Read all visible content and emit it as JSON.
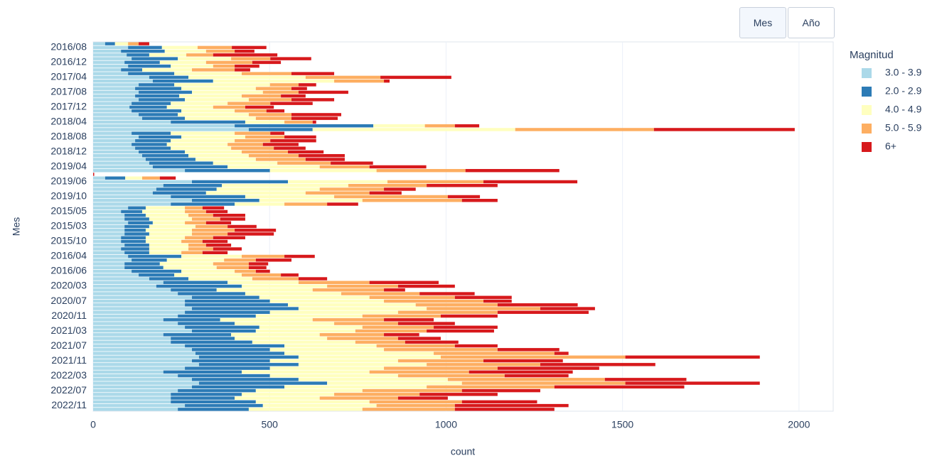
{
  "menu": {
    "buttons": [
      "Mes",
      "Año"
    ],
    "active": 0
  },
  "chart_data": {
    "type": "stacked-barh",
    "x_label": "count",
    "y_label": "Mes",
    "legend_title": "Magnitud",
    "legend_position": "right",
    "grid": true,
    "xlim": [
      0,
      2097
    ],
    "xticks": [
      0,
      500,
      1000,
      1500,
      2000
    ],
    "categories": [
      null,
      "2016/08",
      null,
      null,
      null,
      "2016/12",
      null,
      null,
      null,
      "2017/04",
      null,
      null,
      null,
      "2017/08",
      null,
      null,
      null,
      "2017/12",
      null,
      null,
      null,
      "2018/04",
      null,
      null,
      null,
      "2018/08",
      null,
      null,
      null,
      "2018/12",
      null,
      null,
      null,
      "2019/04",
      null,
      null,
      null,
      "2019/06",
      null,
      null,
      null,
      "2019/10",
      null,
      null,
      null,
      "2015/05",
      null,
      null,
      null,
      "2015/03",
      null,
      null,
      null,
      "2015/10",
      null,
      null,
      null,
      "2016/04",
      null,
      null,
      null,
      "2016/06",
      null,
      null,
      null,
      "2020/03",
      null,
      null,
      null,
      "2020/07",
      null,
      null,
      null,
      "2020/11",
      null,
      null,
      null,
      "2021/03",
      null,
      null,
      null,
      "2021/07",
      null,
      null,
      null,
      "2021/11",
      null,
      null,
      null,
      "2022/03",
      null,
      null,
      null,
      "2022/07",
      null,
      null,
      null,
      "2022/11",
      null
    ],
    "series": [
      {
        "name": "3.0 - 3.9",
        "color": "#abd9e9",
        "values": [
          34,
          99,
          79,
          95,
          109,
          89,
          99,
          79,
          99,
          159,
          169,
          129,
          119,
          129,
          119,
          129,
          109,
          103,
          109,
          129,
          139,
          220,
          401,
          441,
          109,
          129,
          119,
          109,
          119,
          129,
          139,
          149,
          159,
          169,
          260,
          0,
          34,
          280,
          199,
          179,
          169,
          220,
          280,
          220,
          99,
          79,
          89,
          89,
          99,
          89,
          89,
          89,
          79,
          79,
          89,
          79,
          89,
          99,
          109,
          89,
          89,
          109,
          129,
          159,
          199,
          179,
          220,
          240,
          280,
          260,
          260,
          280,
          260,
          240,
          199,
          240,
          260,
          280,
          199,
          220,
          220,
          260,
          280,
          290,
          300,
          280,
          300,
          260,
          199,
          240,
          280,
          300,
          280,
          240,
          220,
          220,
          220,
          260,
          240
        ]
      },
      {
        "name": "2.0 - 2.9",
        "color": "#2c7bb6",
        "values": [
          28,
          96,
          124,
          64,
          131,
          100,
          121,
          60,
          131,
          111,
          171,
          101,
          131,
          151,
          125,
          131,
          111,
          106,
          141,
          111,
          121,
          211,
          393,
          181,
          111,
          121,
          101,
          100,
          101,
          131,
          131,
          141,
          181,
          212,
          241,
          0,
          57,
          272,
          166,
          171,
          151,
          211,
          191,
          181,
          50,
          60,
          60,
          70,
          70,
          70,
          60,
          70,
          70,
          70,
          70,
          80,
          70,
          151,
          100,
          100,
          110,
          141,
          101,
          111,
          182,
          242,
          130,
          191,
          191,
          241,
          292,
          302,
          241,
          221,
          161,
          161,
          211,
          181,
          192,
          181,
          231,
          282,
          221,
          252,
          282,
          221,
          282,
          241,
          222,
          261,
          302,
          363,
          262,
          221,
          201,
          181,
          241,
          221,
          201
        ]
      },
      {
        "name": "4.0 - 4.9",
        "color": "#ffffbf",
        "values": [
          37,
          101,
          117,
          105,
          151,
          131,
          120,
          141,
          191,
          332,
          343,
          271,
          211,
          201,
          177,
          181,
          161,
          131,
          151,
          201,
          201,
          111,
          146,
          574,
          181,
          181,
          181,
          172,
          171,
          161,
          171,
          171,
          182,
          261,
          302,
          0,
          48,
          282,
          358,
          292,
          282,
          252,
          292,
          141,
          111,
          121,
          121,
          121,
          91,
          131,
          131,
          121,
          111,
          101,
          111,
          111,
          91,
          171,
          162,
          151,
          151,
          151,
          191,
          181,
          201,
          242,
          272,
          272,
          312,
          323,
          362,
          363,
          363,
          302,
          262,
          282,
          292,
          282,
          251,
          262,
          292,
          261,
          323,
          423,
          403,
          363,
          363,
          323,
          362,
          363,
          423,
          382,
          403,
          302,
          262,
          241,
          322,
          322,
          322
        ]
      },
      {
        "name": "5.0 - 5.9",
        "color": "#fdae61",
        "values": [
          30,
          97,
          81,
          76,
          111,
          131,
          61,
          121,
          141,
          212,
          141,
          81,
          101,
          101,
          111,
          121,
          121,
          91,
          90,
          121,
          101,
          80,
          85,
          393,
          101,
          111,
          101,
          100,
          121,
          131,
          141,
          141,
          151,
          141,
          252,
          0,
          50,
          272,
          222,
          182,
          181,
          322,
          282,
          121,
          50,
          60,
          70,
          80,
          60,
          91,
          121,
          101,
          80,
          60,
          50,
          70,
          60,
          121,
          90,
          101,
          91,
          60,
          111,
          131,
          201,
          201,
          202,
          222,
          242,
          282,
          232,
          322,
          282,
          222,
          202,
          181,
          202,
          202,
          182,
          201,
          141,
          222,
          322,
          342,
          523,
          242,
          322,
          322,
          282,
          302,
          445,
          463,
          362,
          282,
          242,
          222,
          262,
          222,
          262
        ]
      },
      {
        "name": "6+",
        "color": "#d7191c",
        "values": [
          30,
          98,
          56,
          182,
          116,
          81,
          70,
          44,
          121,
          201,
          16,
          50,
          44,
          141,
          70,
          121,
          120,
          81,
          51,
          141,
          131,
          10,
          69,
          399,
          40,
          90,
          130,
          101,
          90,
          101,
          131,
          111,
          120,
          161,
          266,
          3,
          45,
          266,
          201,
          90,
          91,
          91,
          101,
          88,
          61,
          61,
          91,
          71,
          71,
          82,
          117,
          131,
          91,
          71,
          71,
          81,
          71,
          86,
          101,
          55,
          50,
          40,
          50,
          81,
          196,
          161,
          60,
          156,
          161,
          80,
          227,
          155,
          258,
          161,
          141,
          161,
          181,
          191,
          100,
          121,
          151,
          121,
          175,
          40,
          381,
          225,
          326,
          288,
          294,
          181,
          231,
          381,
          368,
          222,
          221,
          141,
          213,
          322,
          282
        ]
      }
    ]
  }
}
